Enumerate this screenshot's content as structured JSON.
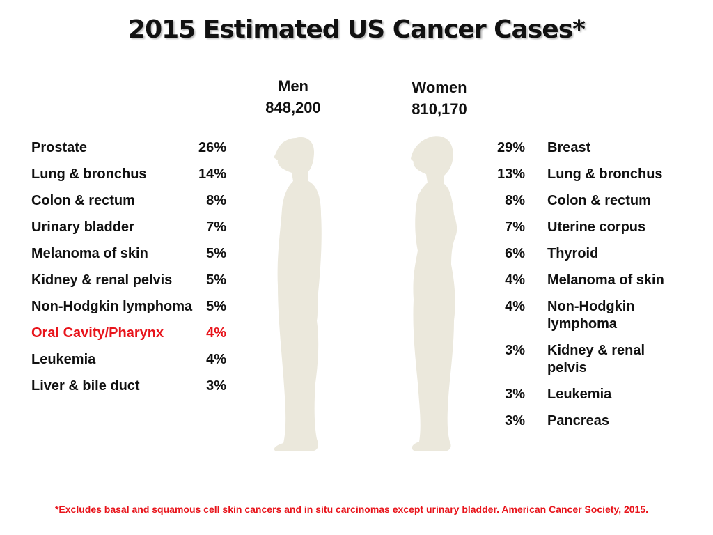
{
  "title": "2015 Estimated US Cancer Cases*",
  "men": {
    "label": "Men",
    "total": "848,200",
    "rows": [
      {
        "site": "Prostate",
        "pct": "26%"
      },
      {
        "site": "Lung & bronchus",
        "pct": "14%"
      },
      {
        "site": "Colon & rectum",
        "pct": "8%"
      },
      {
        "site": "Urinary bladder",
        "pct": "7%"
      },
      {
        "site": "Melanoma of skin",
        "pct": "5%"
      },
      {
        "site": "Kidney & renal pelvis",
        "pct": "5%"
      },
      {
        "site": "Non-Hodgkin lymphoma",
        "pct": "5%"
      },
      {
        "site": "Oral Cavity/Pharynx",
        "pct": "4%",
        "color": "#e8141b"
      },
      {
        "site": "Leukemia",
        "pct": "4%"
      },
      {
        "site": "Liver & bile duct",
        "pct": "3%"
      }
    ]
  },
  "women": {
    "label": "Women",
    "total": "810,170",
    "rows": [
      {
        "site": "Breast",
        "pct": "29%"
      },
      {
        "site": "Lung & bronchus",
        "pct": "13%"
      },
      {
        "site": "Colon & rectum",
        "pct": "8%"
      },
      {
        "site": "Uterine corpus",
        "pct": "7%"
      },
      {
        "site": "Thyroid",
        "pct": "6%"
      },
      {
        "site": "Melanoma of skin",
        "pct": "4%"
      },
      {
        "site": "Non-Hodgkin lymphoma",
        "pct": "4%"
      },
      {
        "site": "Kidney & renal pelvis",
        "pct": "3%"
      },
      {
        "site": "Leukemia",
        "pct": "3%"
      },
      {
        "site": "Pancreas",
        "pct": "3%"
      }
    ]
  },
  "footnote": "*Excludes basal and squamous cell skin cancers and in situ carcinomas except urinary bladder. American Cancer Society, 2015."
}
